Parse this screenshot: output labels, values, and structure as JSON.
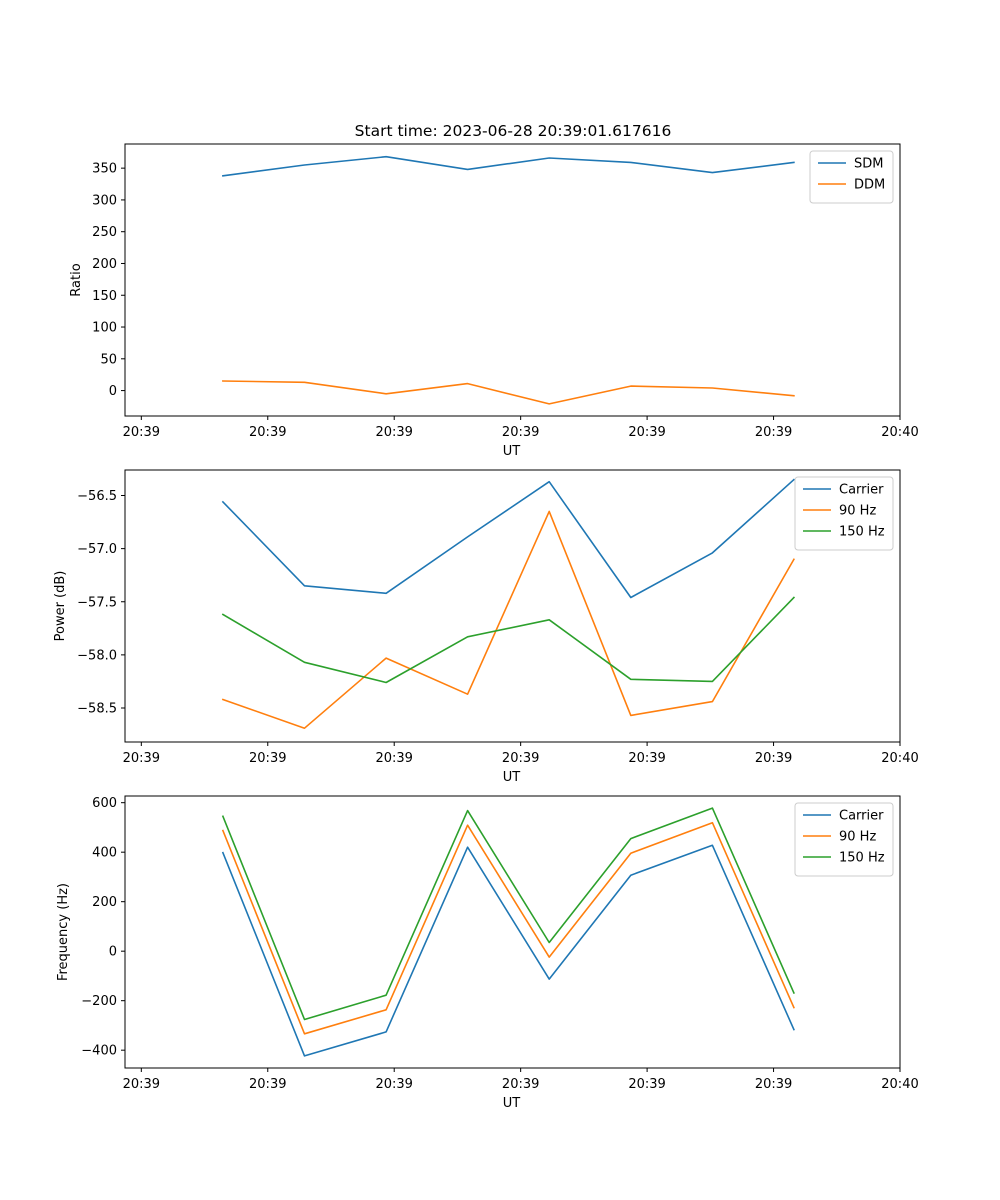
{
  "figure_title": "Start time: 2023-06-28 20:39:01.617616",
  "chart_data": [
    {
      "type": "line",
      "title": "Start time: 2023-06-28 20:39:01.617616",
      "xlabel": "UT",
      "ylabel": "Ratio",
      "x": [
        1,
        2,
        3,
        4,
        5,
        6,
        7,
        8
      ],
      "x_tick_values": [
        0,
        1.55,
        3.1,
        4.65,
        6.2,
        7.75,
        9.3
      ],
      "x_tick_labels": [
        "20:39",
        "20:39",
        "20:39",
        "20:39",
        "20:39",
        "20:39",
        "20:40"
      ],
      "xlim": [
        -0.2,
        9.3
      ],
      "ylim": [
        -40,
        388
      ],
      "y_ticks": [
        0,
        50,
        100,
        150,
        200,
        250,
        300,
        350
      ],
      "grid": false,
      "legend_position": "top-right",
      "series": [
        {
          "name": "SDM",
          "color": "#1f77b4",
          "values": [
            338,
            355,
            368,
            348,
            366,
            359,
            343,
            359
          ]
        },
        {
          "name": "DDM",
          "color": "#ff7f0e",
          "values": [
            15,
            13,
            -5,
            11,
            -21,
            7,
            4,
            -8
          ]
        }
      ]
    },
    {
      "type": "line",
      "xlabel": "UT",
      "ylabel": "Power (dB)",
      "x": [
        1,
        2,
        3,
        4,
        5,
        6,
        7,
        8
      ],
      "x_tick_values": [
        0,
        1.55,
        3.1,
        4.65,
        6.2,
        7.75,
        9.3
      ],
      "x_tick_labels": [
        "20:39",
        "20:39",
        "20:39",
        "20:39",
        "20:39",
        "20:39",
        "20:40"
      ],
      "xlim": [
        -0.2,
        9.3
      ],
      "ylim": [
        -58.82,
        -56.26
      ],
      "y_ticks": [
        -58.5,
        -58.0,
        -57.5,
        -57.0,
        -56.5
      ],
      "y_tick_labels": [
        "−58.5",
        "−58.0",
        "−57.5",
        "−57.0",
        "−56.5"
      ],
      "grid": false,
      "legend_position": "top-right",
      "series": [
        {
          "name": "Carrier",
          "color": "#1f77b4",
          "values": [
            -56.56,
            -57.35,
            -57.42,
            -56.89,
            -56.37,
            -57.46,
            -57.04,
            -56.35
          ]
        },
        {
          "name": "90 Hz",
          "color": "#ff7f0e",
          "values": [
            -58.42,
            -58.69,
            -58.03,
            -58.37,
            -56.65,
            -58.57,
            -58.44,
            -57.1
          ]
        },
        {
          "name": "150 Hz",
          "color": "#2ca02c",
          "values": [
            -57.62,
            -58.07,
            -58.26,
            -57.83,
            -57.67,
            -58.23,
            -58.25,
            -57.46
          ]
        }
      ]
    },
    {
      "type": "line",
      "xlabel": "UT",
      "ylabel": "Frequency (Hz)",
      "x": [
        1,
        2,
        3,
        4,
        5,
        6,
        7,
        8
      ],
      "x_tick_values": [
        0,
        1.55,
        3.1,
        4.65,
        6.2,
        7.75,
        9.3
      ],
      "x_tick_labels": [
        "20:39",
        "20:39",
        "20:39",
        "20:39",
        "20:39",
        "20:39",
        "20:40"
      ],
      "xlim": [
        -0.2,
        9.3
      ],
      "ylim": [
        -472,
        627
      ],
      "y_ticks": [
        -400,
        -200,
        0,
        200,
        400,
        600
      ],
      "y_tick_labels": [
        "−400",
        "−200",
        "0",
        "200",
        "400",
        "600"
      ],
      "grid": false,
      "legend_position": "top-right",
      "series": [
        {
          "name": "Carrier",
          "color": "#1f77b4",
          "values": [
            398,
            -423,
            -326,
            420,
            -113,
            307,
            428,
            -317
          ]
        },
        {
          "name": "90 Hz",
          "color": "#ff7f0e",
          "values": [
            487,
            -334,
            -237,
            509,
            -24,
            396,
            519,
            -228
          ]
        },
        {
          "name": "150 Hz",
          "color": "#2ca02c",
          "values": [
            545,
            -276,
            -178,
            568,
            35,
            455,
            578,
            -169
          ]
        }
      ]
    }
  ]
}
